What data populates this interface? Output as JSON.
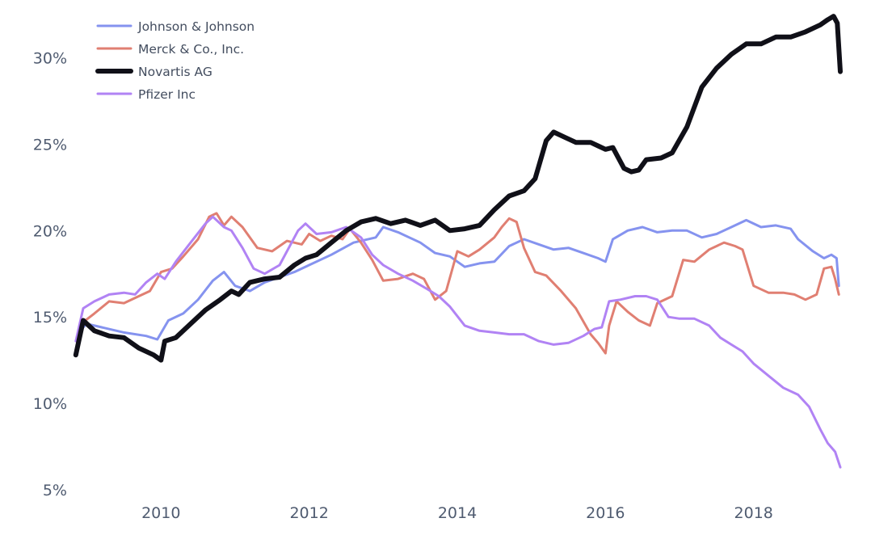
{
  "chart_data": {
    "type": "line",
    "title": "",
    "xlabel": "",
    "ylabel": "",
    "xlim": [
      2008.83,
      2019.17
    ],
    "ylim": [
      5,
      32.5
    ],
    "x_ticks": [
      2010,
      2012,
      2014,
      2016,
      2018
    ],
    "x_tick_labels": [
      "2010",
      "2012",
      "2014",
      "2016",
      "2018"
    ],
    "y_ticks": [
      5,
      10,
      15,
      20,
      25,
      30
    ],
    "y_tick_labels": [
      "5%",
      "10%",
      "15%",
      "20%",
      "25%",
      "30%"
    ],
    "grid": false,
    "legend_position": "top-left",
    "series": [
      {
        "name": "Johnson & Johnson",
        "color": "#8593ef",
        "width": 3,
        "points": [
          [
            2008.85,
            13.0
          ],
          [
            2008.9,
            14.2
          ],
          [
            2009.0,
            14.6
          ],
          [
            2009.2,
            14.4
          ],
          [
            2009.5,
            14.1
          ],
          [
            2009.8,
            13.9
          ],
          [
            2009.95,
            13.7
          ],
          [
            2010.1,
            14.8
          ],
          [
            2010.3,
            15.2
          ],
          [
            2010.5,
            16.0
          ],
          [
            2010.7,
            17.1
          ],
          [
            2010.85,
            17.6
          ],
          [
            2011.0,
            16.8
          ],
          [
            2011.2,
            16.5
          ],
          [
            2011.4,
            17.0
          ],
          [
            2011.6,
            17.3
          ],
          [
            2011.8,
            17.6
          ],
          [
            2012.0,
            18.0
          ],
          [
            2012.3,
            18.6
          ],
          [
            2012.6,
            19.3
          ],
          [
            2012.9,
            19.6
          ],
          [
            2013.0,
            20.2
          ],
          [
            2013.2,
            19.9
          ],
          [
            2013.5,
            19.3
          ],
          [
            2013.7,
            18.7
          ],
          [
            2013.9,
            18.5
          ],
          [
            2014.1,
            17.9
          ],
          [
            2014.3,
            18.1
          ],
          [
            2014.5,
            18.2
          ],
          [
            2014.7,
            19.1
          ],
          [
            2014.9,
            19.5
          ],
          [
            2015.1,
            19.2
          ],
          [
            2015.3,
            18.9
          ],
          [
            2015.5,
            19.0
          ],
          [
            2015.7,
            18.7
          ],
          [
            2015.9,
            18.4
          ],
          [
            2016.0,
            18.2
          ],
          [
            2016.1,
            19.5
          ],
          [
            2016.3,
            20.0
          ],
          [
            2016.5,
            20.2
          ],
          [
            2016.7,
            19.9
          ],
          [
            2016.9,
            20.0
          ],
          [
            2017.1,
            20.0
          ],
          [
            2017.3,
            19.6
          ],
          [
            2017.5,
            19.8
          ],
          [
            2017.7,
            20.2
          ],
          [
            2017.9,
            20.6
          ],
          [
            2018.1,
            20.2
          ],
          [
            2018.3,
            20.3
          ],
          [
            2018.5,
            20.1
          ],
          [
            2018.6,
            19.5
          ],
          [
            2018.8,
            18.8
          ],
          [
            2018.95,
            18.4
          ],
          [
            2019.05,
            18.6
          ],
          [
            2019.12,
            18.4
          ],
          [
            2019.15,
            16.8
          ]
        ]
      },
      {
        "name": "Merck & Co., Inc.",
        "color": "#e07f72",
        "width": 3,
        "points": [
          [
            2008.85,
            13.1
          ],
          [
            2008.95,
            14.7
          ],
          [
            2009.1,
            15.2
          ],
          [
            2009.3,
            15.9
          ],
          [
            2009.5,
            15.8
          ],
          [
            2009.7,
            16.2
          ],
          [
            2009.85,
            16.5
          ],
          [
            2010.0,
            17.6
          ],
          [
            2010.15,
            17.8
          ],
          [
            2010.3,
            18.5
          ],
          [
            2010.5,
            19.5
          ],
          [
            2010.65,
            20.8
          ],
          [
            2010.75,
            21.0
          ],
          [
            2010.85,
            20.3
          ],
          [
            2010.95,
            20.8
          ],
          [
            2011.1,
            20.2
          ],
          [
            2011.3,
            19.0
          ],
          [
            2011.5,
            18.8
          ],
          [
            2011.7,
            19.4
          ],
          [
            2011.9,
            19.2
          ],
          [
            2012.0,
            19.8
          ],
          [
            2012.15,
            19.4
          ],
          [
            2012.3,
            19.7
          ],
          [
            2012.45,
            19.5
          ],
          [
            2012.55,
            20.1
          ],
          [
            2012.7,
            19.3
          ],
          [
            2012.85,
            18.3
          ],
          [
            2013.0,
            17.1
          ],
          [
            2013.2,
            17.2
          ],
          [
            2013.4,
            17.5
          ],
          [
            2013.55,
            17.2
          ],
          [
            2013.7,
            16.0
          ],
          [
            2013.85,
            16.5
          ],
          [
            2014.0,
            18.8
          ],
          [
            2014.15,
            18.5
          ],
          [
            2014.3,
            18.9
          ],
          [
            2014.5,
            19.6
          ],
          [
            2014.6,
            20.2
          ],
          [
            2014.7,
            20.7
          ],
          [
            2014.8,
            20.5
          ],
          [
            2014.9,
            19.0
          ],
          [
            2015.05,
            17.6
          ],
          [
            2015.2,
            17.4
          ],
          [
            2015.4,
            16.5
          ],
          [
            2015.6,
            15.5
          ],
          [
            2015.8,
            14.0
          ],
          [
            2015.9,
            13.5
          ],
          [
            2016.0,
            12.9
          ],
          [
            2016.05,
            14.5
          ],
          [
            2016.15,
            15.9
          ],
          [
            2016.3,
            15.3
          ],
          [
            2016.45,
            14.8
          ],
          [
            2016.6,
            14.5
          ],
          [
            2016.7,
            15.8
          ],
          [
            2016.9,
            16.2
          ],
          [
            2017.05,
            18.3
          ],
          [
            2017.2,
            18.2
          ],
          [
            2017.4,
            18.9
          ],
          [
            2017.6,
            19.3
          ],
          [
            2017.75,
            19.1
          ],
          [
            2017.85,
            18.9
          ],
          [
            2018.0,
            16.8
          ],
          [
            2018.2,
            16.4
          ],
          [
            2018.4,
            16.4
          ],
          [
            2018.55,
            16.3
          ],
          [
            2018.7,
            16.0
          ],
          [
            2018.85,
            16.3
          ],
          [
            2018.95,
            17.8
          ],
          [
            2019.05,
            17.9
          ],
          [
            2019.1,
            17.2
          ],
          [
            2019.15,
            16.3
          ]
        ]
      },
      {
        "name": "Novartis AG",
        "color": "#101018",
        "width": 6,
        "points": [
          [
            2008.85,
            12.8
          ],
          [
            2008.95,
            14.8
          ],
          [
            2009.1,
            14.2
          ],
          [
            2009.3,
            13.9
          ],
          [
            2009.5,
            13.8
          ],
          [
            2009.7,
            13.2
          ],
          [
            2009.9,
            12.8
          ],
          [
            2010.0,
            12.5
          ],
          [
            2010.05,
            13.6
          ],
          [
            2010.2,
            13.8
          ],
          [
            2010.4,
            14.6
          ],
          [
            2010.6,
            15.4
          ],
          [
            2010.8,
            16.0
          ],
          [
            2010.95,
            16.5
          ],
          [
            2011.05,
            16.3
          ],
          [
            2011.2,
            17.0
          ],
          [
            2011.4,
            17.2
          ],
          [
            2011.6,
            17.3
          ],
          [
            2011.8,
            18.0
          ],
          [
            2011.95,
            18.4
          ],
          [
            2012.1,
            18.6
          ],
          [
            2012.3,
            19.3
          ],
          [
            2012.5,
            20.0
          ],
          [
            2012.7,
            20.5
          ],
          [
            2012.9,
            20.7
          ],
          [
            2013.1,
            20.4
          ],
          [
            2013.3,
            20.6
          ],
          [
            2013.5,
            20.3
          ],
          [
            2013.7,
            20.6
          ],
          [
            2013.9,
            20.0
          ],
          [
            2014.1,
            20.1
          ],
          [
            2014.3,
            20.3
          ],
          [
            2014.5,
            21.2
          ],
          [
            2014.7,
            22.0
          ],
          [
            2014.9,
            22.3
          ],
          [
            2015.05,
            23.0
          ],
          [
            2015.2,
            25.2
          ],
          [
            2015.3,
            25.7
          ],
          [
            2015.45,
            25.4
          ],
          [
            2015.6,
            25.1
          ],
          [
            2015.8,
            25.1
          ],
          [
            2015.9,
            24.9
          ],
          [
            2016.0,
            24.7
          ],
          [
            2016.1,
            24.8
          ],
          [
            2016.25,
            23.6
          ],
          [
            2016.35,
            23.4
          ],
          [
            2016.45,
            23.5
          ],
          [
            2016.55,
            24.1
          ],
          [
            2016.75,
            24.2
          ],
          [
            2016.9,
            24.5
          ],
          [
            2017.1,
            26.0
          ],
          [
            2017.3,
            28.3
          ],
          [
            2017.5,
            29.4
          ],
          [
            2017.7,
            30.2
          ],
          [
            2017.9,
            30.8
          ],
          [
            2018.1,
            30.8
          ],
          [
            2018.3,
            31.2
          ],
          [
            2018.5,
            31.2
          ],
          [
            2018.7,
            31.5
          ],
          [
            2018.9,
            31.9
          ],
          [
            2019.0,
            32.2
          ],
          [
            2019.08,
            32.4
          ],
          [
            2019.13,
            32.0
          ],
          [
            2019.17,
            29.2
          ]
        ]
      },
      {
        "name": "Pfizer Inc",
        "color": "#b183f4",
        "width": 3,
        "points": [
          [
            2008.85,
            13.6
          ],
          [
            2008.95,
            15.5
          ],
          [
            2009.1,
            15.9
          ],
          [
            2009.3,
            16.3
          ],
          [
            2009.5,
            16.4
          ],
          [
            2009.65,
            16.3
          ],
          [
            2009.8,
            17.0
          ],
          [
            2009.95,
            17.5
          ],
          [
            2010.05,
            17.2
          ],
          [
            2010.2,
            18.2
          ],
          [
            2010.4,
            19.3
          ],
          [
            2010.6,
            20.4
          ],
          [
            2010.7,
            20.8
          ],
          [
            2010.85,
            20.2
          ],
          [
            2010.95,
            20.0
          ],
          [
            2011.1,
            19.0
          ],
          [
            2011.25,
            17.8
          ],
          [
            2011.4,
            17.5
          ],
          [
            2011.6,
            18.0
          ],
          [
            2011.85,
            20.0
          ],
          [
            2011.95,
            20.4
          ],
          [
            2012.1,
            19.8
          ],
          [
            2012.3,
            19.9
          ],
          [
            2012.5,
            20.2
          ],
          [
            2012.7,
            19.6
          ],
          [
            2012.85,
            18.6
          ],
          [
            2013.0,
            18.0
          ],
          [
            2013.2,
            17.5
          ],
          [
            2013.4,
            17.1
          ],
          [
            2013.6,
            16.6
          ],
          [
            2013.75,
            16.2
          ],
          [
            2013.9,
            15.6
          ],
          [
            2014.1,
            14.5
          ],
          [
            2014.3,
            14.2
          ],
          [
            2014.5,
            14.1
          ],
          [
            2014.7,
            14.0
          ],
          [
            2014.9,
            14.0
          ],
          [
            2015.1,
            13.6
          ],
          [
            2015.3,
            13.4
          ],
          [
            2015.5,
            13.5
          ],
          [
            2015.7,
            13.9
          ],
          [
            2015.85,
            14.3
          ],
          [
            2015.95,
            14.4
          ],
          [
            2016.05,
            15.9
          ],
          [
            2016.2,
            16.0
          ],
          [
            2016.4,
            16.2
          ],
          [
            2016.55,
            16.2
          ],
          [
            2016.7,
            16.0
          ],
          [
            2016.85,
            15.0
          ],
          [
            2017.0,
            14.9
          ],
          [
            2017.2,
            14.9
          ],
          [
            2017.4,
            14.5
          ],
          [
            2017.55,
            13.8
          ],
          [
            2017.7,
            13.4
          ],
          [
            2017.85,
            13.0
          ],
          [
            2018.0,
            12.3
          ],
          [
            2018.2,
            11.6
          ],
          [
            2018.4,
            10.9
          ],
          [
            2018.6,
            10.5
          ],
          [
            2018.75,
            9.8
          ],
          [
            2018.9,
            8.5
          ],
          [
            2019.0,
            7.7
          ],
          [
            2019.1,
            7.2
          ],
          [
            2019.17,
            6.3
          ]
        ]
      }
    ]
  }
}
